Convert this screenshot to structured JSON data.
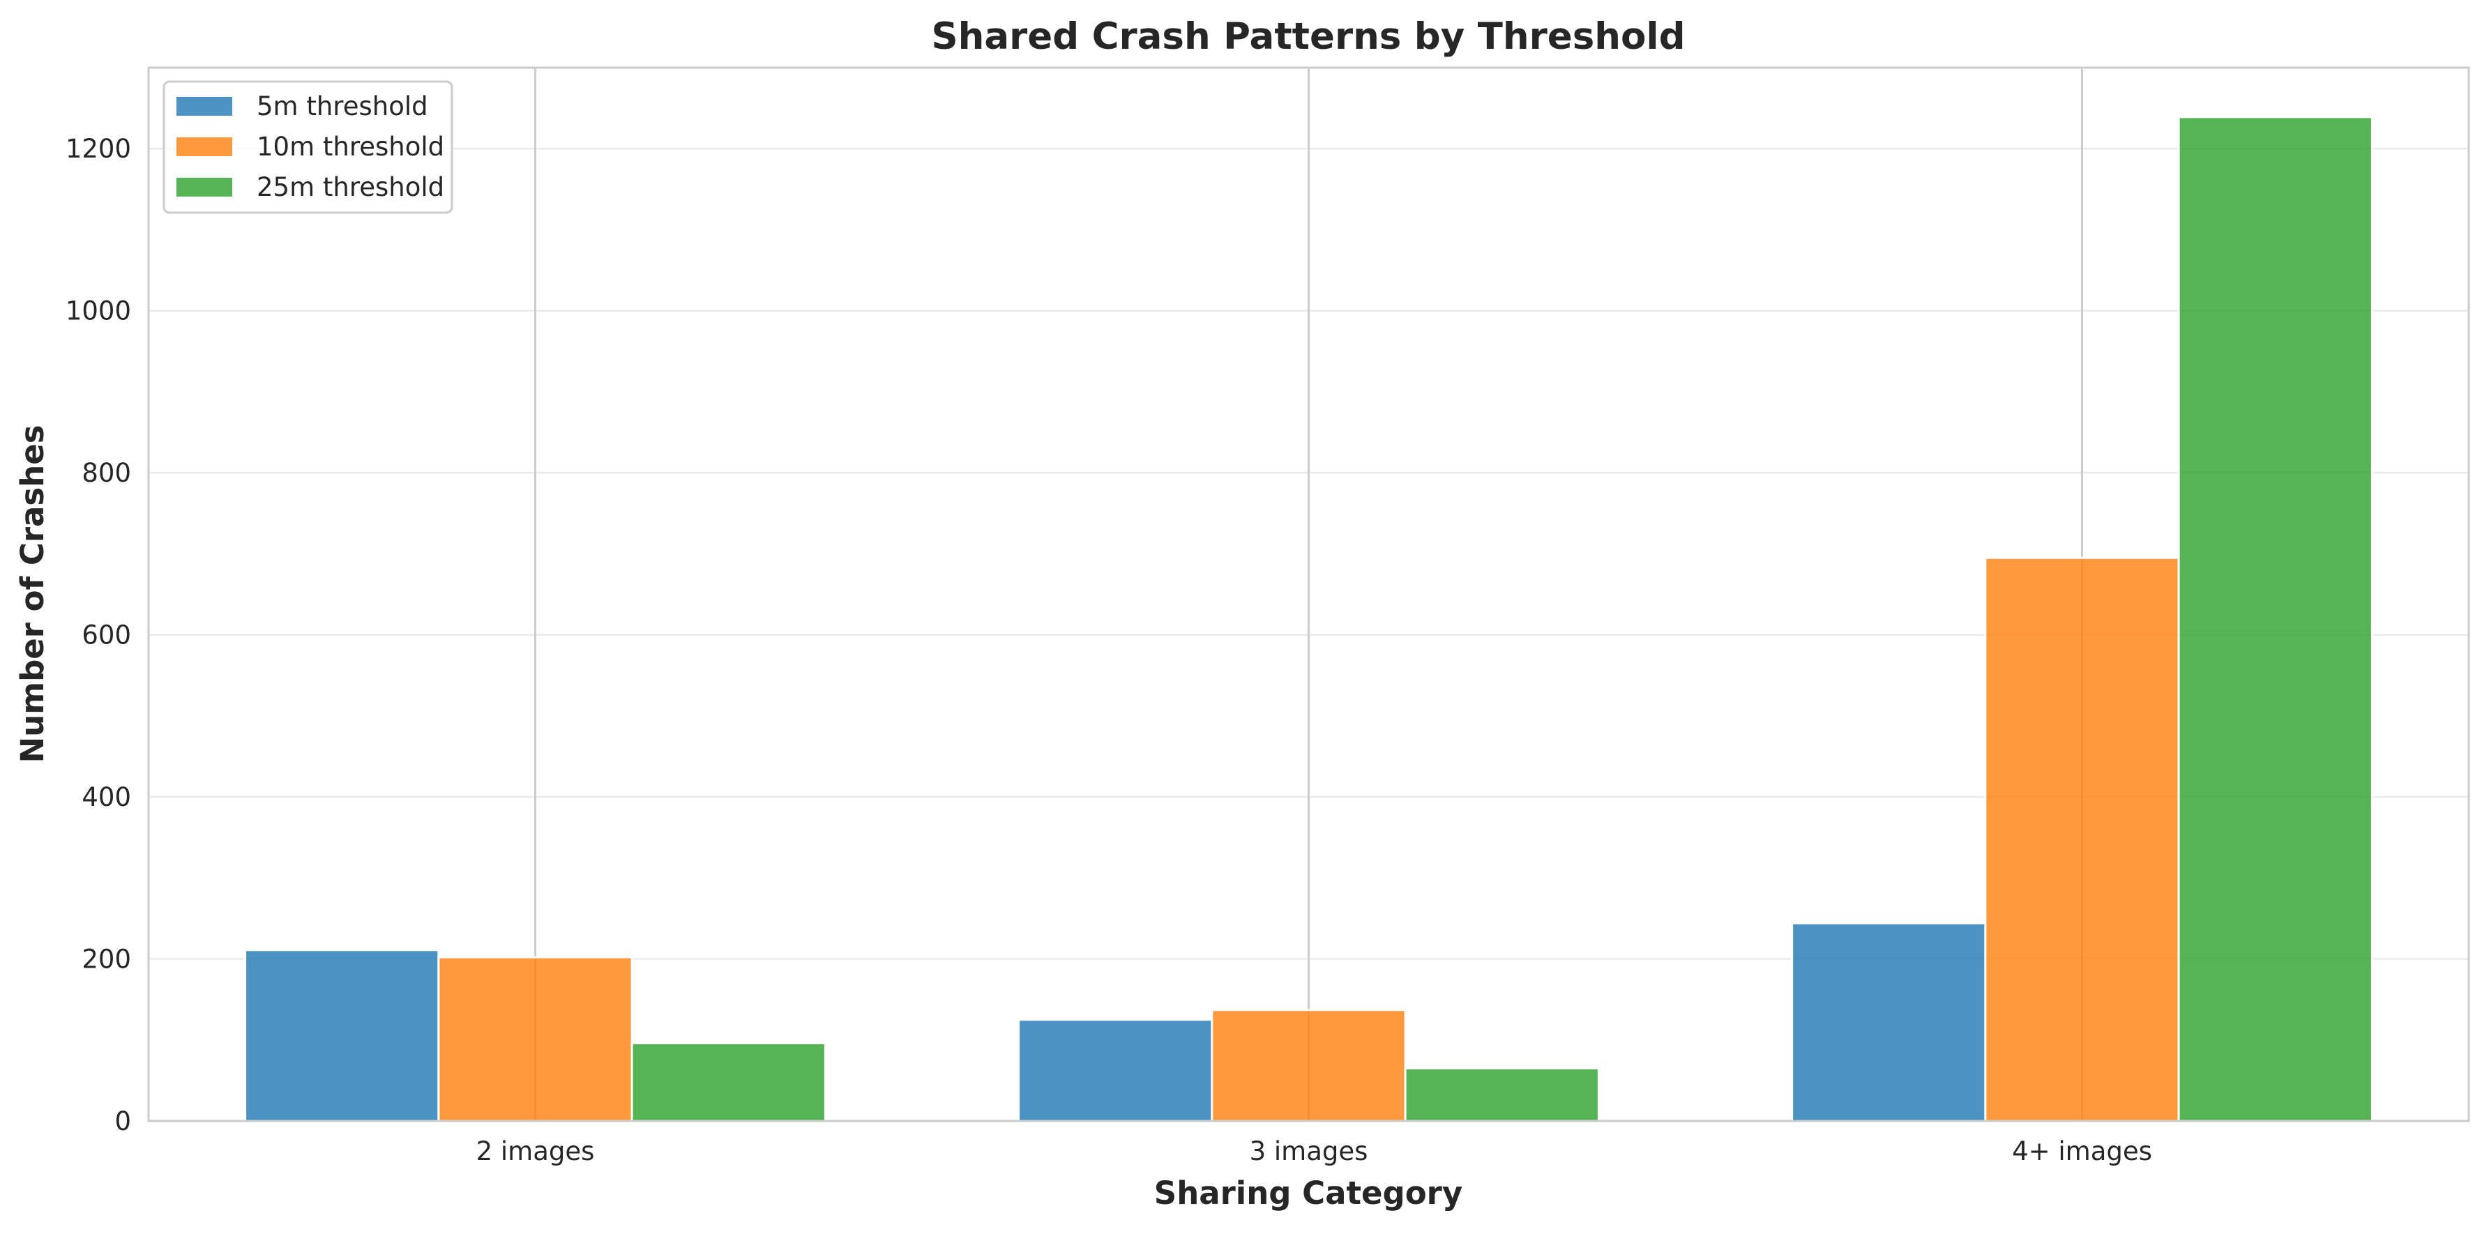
{
  "chart_data": {
    "type": "bar",
    "title": "Shared Crash Patterns by Threshold",
    "xlabel": "Sharing Category",
    "ylabel": "Number of Crashes",
    "categories": [
      "2 images",
      "3 images",
      "4+ images"
    ],
    "series": [
      {
        "name": "5m threshold",
        "color": "#1f77b4",
        "values": [
          211,
          125,
          244
        ]
      },
      {
        "name": "10m threshold",
        "color": "#ff7f0e",
        "values": [
          202,
          137,
          695
        ]
      },
      {
        "name": "25m threshold",
        "color": "#2ca02c",
        "values": [
          96,
          65,
          1239
        ]
      }
    ],
    "ylim": [
      0,
      1300
    ],
    "yticks": [
      0,
      200,
      400,
      600,
      800,
      1000,
      1200
    ],
    "grid": true,
    "legend_position": "top-left",
    "bar_opacity": 0.8
  }
}
